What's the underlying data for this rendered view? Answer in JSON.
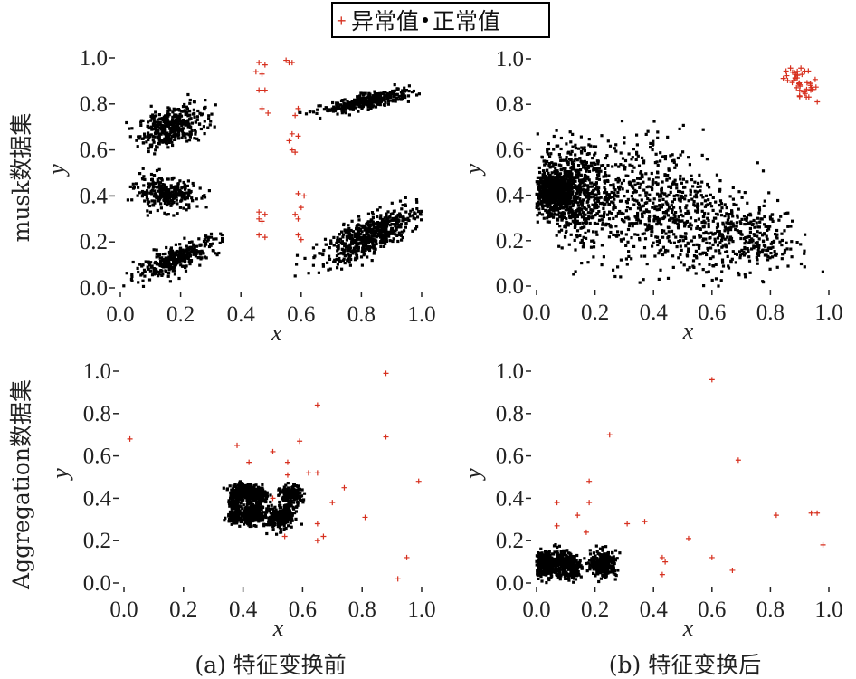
{
  "legend": {
    "anomaly_label": "异常值",
    "normal_label": "正常值",
    "anomaly_color": "#d7301f",
    "normal_color": "#000000"
  },
  "row_labels": [
    "musk数据集",
    "Aggregation数据集"
  ],
  "captions": [
    "(a) 特征变换前",
    "(b) 特征变换后"
  ],
  "chart_data": [
    {
      "type": "scatter",
      "xlabel": "x",
      "ylabel": "y",
      "xlim": [
        0,
        1
      ],
      "ylim": [
        0,
        1
      ],
      "xticks": [
        "0.0",
        "0.2",
        "0.4",
        "0.6",
        "0.8",
        "1.0"
      ],
      "yticks": [
        "0.0",
        "0.2",
        "0.4",
        "0.6",
        "0.8",
        "1.0"
      ],
      "series": [
        {
          "name": "正常值",
          "clusters": [
            {
              "cx": 0.17,
              "cy": 0.7,
              "sx": 0.055,
              "sy": 0.045,
              "rho": 0.4,
              "n": 380
            },
            {
              "cx": 0.15,
              "cy": 0.41,
              "sx": 0.05,
              "sy": 0.035,
              "rho": -0.2,
              "n": 280
            },
            {
              "cx": 0.19,
              "cy": 0.13,
              "sx": 0.07,
              "sy": 0.045,
              "rho": 0.8,
              "n": 330
            },
            {
              "cx": 0.82,
              "cy": 0.81,
              "sx": 0.075,
              "sy": 0.025,
              "rho": 0.8,
              "n": 340
            },
            {
              "cx": 0.83,
              "cy": 0.23,
              "sx": 0.08,
              "sy": 0.06,
              "rho": 0.75,
              "n": 600
            }
          ]
        },
        {
          "name": "异常值",
          "points": [
            [
              0.46,
              0.98
            ],
            [
              0.48,
              0.97
            ],
            [
              0.45,
              0.94
            ],
            [
              0.47,
              0.93
            ],
            [
              0.46,
              0.86
            ],
            [
              0.48,
              0.86
            ],
            [
              0.47,
              0.78
            ],
            [
              0.49,
              0.76
            ],
            [
              0.55,
              0.99
            ],
            [
              0.57,
              0.98
            ],
            [
              0.56,
              0.98
            ],
            [
              0.59,
              0.78
            ],
            [
              0.58,
              0.75
            ],
            [
              0.57,
              0.67
            ],
            [
              0.59,
              0.66
            ],
            [
              0.56,
              0.64
            ],
            [
              0.57,
              0.6
            ],
            [
              0.58,
              0.59
            ],
            [
              0.46,
              0.33
            ],
            [
              0.48,
              0.32
            ],
            [
              0.46,
              0.3
            ],
            [
              0.47,
              0.29
            ],
            [
              0.46,
              0.23
            ],
            [
              0.48,
              0.22
            ],
            [
              0.59,
              0.41
            ],
            [
              0.61,
              0.4
            ],
            [
              0.6,
              0.35
            ],
            [
              0.58,
              0.32
            ],
            [
              0.59,
              0.3
            ],
            [
              0.59,
              0.23
            ],
            [
              0.6,
              0.21
            ]
          ]
        }
      ]
    },
    {
      "type": "scatter",
      "xlabel": "x",
      "ylabel": "y",
      "xlim": [
        0,
        1
      ],
      "ylim": [
        0,
        1
      ],
      "xticks": [
        "0.0",
        "0.2",
        "0.4",
        "0.6",
        "0.8",
        "1.0"
      ],
      "yticks": [
        "0.0",
        "0.2",
        "0.4",
        "0.6",
        "0.8",
        "1.0"
      ],
      "series": [
        {
          "name": "正常值",
          "clusters": [
            {
              "cx": 0.05,
              "cy": 0.42,
              "sx": 0.035,
              "sy": 0.05,
              "rho": 0.0,
              "n": 550
            },
            {
              "cx": 0.13,
              "cy": 0.42,
              "sx": 0.06,
              "sy": 0.1,
              "rho": -0.1,
              "n": 600
            },
            {
              "cx": 0.33,
              "cy": 0.38,
              "sx": 0.12,
              "sy": 0.14,
              "rho": 0.1,
              "n": 450
            },
            {
              "cx": 0.55,
              "cy": 0.26,
              "sx": 0.13,
              "sy": 0.12,
              "rho": -0.2,
              "n": 450
            },
            {
              "cx": 0.75,
              "cy": 0.22,
              "sx": 0.07,
              "sy": 0.08,
              "rho": 0.0,
              "n": 150
            }
          ]
        },
        {
          "name": "异常值",
          "cluster": {
            "cx": 0.91,
            "cy": 0.89,
            "sx": 0.03,
            "sy": 0.035,
            "rho": -0.5,
            "n": 45
          }
        }
      ]
    },
    {
      "type": "scatter",
      "xlabel": "x",
      "ylabel": "y",
      "xlim": [
        0,
        1
      ],
      "ylim": [
        0,
        1
      ],
      "xticks": [
        "0.0",
        "0.2",
        "0.4",
        "0.6",
        "0.8",
        "1.0"
      ],
      "yticks": [
        "0.0",
        "0.2",
        "0.4",
        "0.6",
        "0.8",
        "1.0"
      ],
      "series": [
        {
          "name": "正常值",
          "clusters": [
            {
              "cx": 0.4,
              "cy": 0.43,
              "sx": 0.022,
              "sy": 0.02,
              "rho": 0.0,
              "n": 240
            },
            {
              "cx": 0.45,
              "cy": 0.41,
              "sx": 0.018,
              "sy": 0.02,
              "rho": 0.0,
              "n": 180
            },
            {
              "cx": 0.37,
              "cy": 0.37,
              "sx": 0.01,
              "sy": 0.015,
              "rho": 0.0,
              "n": 80
            },
            {
              "cx": 0.37,
              "cy": 0.31,
              "sx": 0.012,
              "sy": 0.012,
              "rho": 0.0,
              "n": 80
            },
            {
              "cx": 0.43,
              "cy": 0.32,
              "sx": 0.028,
              "sy": 0.022,
              "rho": 0.0,
              "n": 260
            },
            {
              "cx": 0.52,
              "cy": 0.3,
              "sx": 0.018,
              "sy": 0.025,
              "rho": 0.0,
              "n": 170
            },
            {
              "cx": 0.56,
              "cy": 0.41,
              "sx": 0.018,
              "sy": 0.025,
              "rho": 0.0,
              "n": 180
            },
            {
              "cx": 0.55,
              "cy": 0.33,
              "sx": 0.012,
              "sy": 0.02,
              "rho": 0.0,
              "n": 90
            }
          ]
        },
        {
          "name": "异常值",
          "points": [
            [
              0.02,
              0.68
            ],
            [
              0.38,
              0.65
            ],
            [
              0.5,
              0.62
            ],
            [
              0.55,
              0.57
            ],
            [
              0.59,
              0.67
            ],
            [
              0.62,
              0.52
            ],
            [
              0.65,
              0.52
            ],
            [
              0.74,
              0.45
            ],
            [
              0.81,
              0.31
            ],
            [
              0.88,
              0.99
            ],
            [
              0.88,
              0.69
            ],
            [
              0.99,
              0.48
            ],
            [
              0.95,
              0.12
            ],
            [
              0.92,
              0.02
            ],
            [
              0.65,
              0.84
            ],
            [
              0.5,
              0.4
            ],
            [
              0.65,
              0.28
            ],
            [
              0.67,
              0.22
            ],
            [
              0.65,
              0.2
            ],
            [
              0.54,
              0.22
            ],
            [
              0.42,
              0.57
            ],
            [
              0.55,
              0.51
            ],
            [
              0.7,
              0.38
            ]
          ]
        }
      ]
    },
    {
      "type": "scatter",
      "xlabel": "x",
      "ylabel": "y",
      "xlim": [
        0,
        1
      ],
      "ylim": [
        0,
        1
      ],
      "xticks": [
        "0.0",
        "0.2",
        "0.4",
        "0.6",
        "0.8",
        "1.0"
      ],
      "yticks": [
        "0.0",
        "0.2",
        "0.4",
        "0.6",
        "0.8",
        "1.0"
      ],
      "series": [
        {
          "name": "正常值",
          "clusters": [
            {
              "cx": 0.03,
              "cy": 0.09,
              "sx": 0.018,
              "sy": 0.03,
              "rho": 0.0,
              "n": 250
            },
            {
              "cx": 0.09,
              "cy": 0.09,
              "sx": 0.02,
              "sy": 0.03,
              "rho": 0.0,
              "n": 250
            },
            {
              "cx": 0.13,
              "cy": 0.07,
              "sx": 0.012,
              "sy": 0.02,
              "rho": 0.0,
              "n": 100
            },
            {
              "cx": 0.23,
              "cy": 0.09,
              "sx": 0.022,
              "sy": 0.03,
              "rho": 0.0,
              "n": 300
            }
          ]
        },
        {
          "name": "异常值",
          "points": [
            [
              0.6,
              0.96
            ],
            [
              0.25,
              0.7
            ],
            [
              0.69,
              0.58
            ],
            [
              0.18,
              0.48
            ],
            [
              0.07,
              0.38
            ],
            [
              0.18,
              0.38
            ],
            [
              0.14,
              0.32
            ],
            [
              0.07,
              0.27
            ],
            [
              0.31,
              0.28
            ],
            [
              0.37,
              0.29
            ],
            [
              0.17,
              0.24
            ],
            [
              0.52,
              0.21
            ],
            [
              0.6,
              0.12
            ],
            [
              0.43,
              0.12
            ],
            [
              0.44,
              0.1
            ],
            [
              0.43,
              0.04
            ],
            [
              0.67,
              0.06
            ],
            [
              0.82,
              0.32
            ],
            [
              0.94,
              0.33
            ],
            [
              0.98,
              0.18
            ],
            [
              0.96,
              0.33
            ]
          ]
        }
      ]
    }
  ]
}
